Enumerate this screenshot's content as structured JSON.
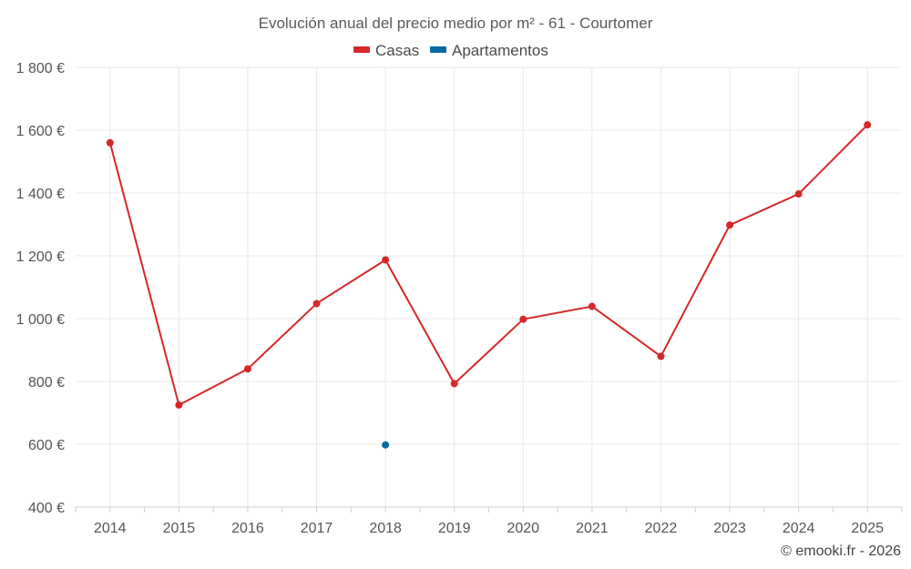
{
  "chart_data": {
    "type": "line",
    "title": "Evolución anual del precio medio por m² - 61 - Courtomer",
    "categories": [
      "2014",
      "2015",
      "2016",
      "2017",
      "2018",
      "2019",
      "2020",
      "2021",
      "2022",
      "2023",
      "2024",
      "2025"
    ],
    "series": [
      {
        "name": "Casas",
        "color": "#d62728",
        "values": [
          1560,
          725,
          840,
          1048,
          1187,
          793,
          998,
          1039,
          880,
          1298,
          1397,
          1617
        ]
      },
      {
        "name": "Apartamentos",
        "color": "#07689f",
        "values": [
          null,
          null,
          null,
          null,
          598,
          null,
          null,
          null,
          null,
          null,
          null,
          null
        ]
      }
    ],
    "yticks": [
      400,
      600,
      800,
      1000,
      1200,
      1400,
      1600,
      1800
    ],
    "ytick_labels": [
      "400 €",
      "600 €",
      "800 €",
      "1 000 €",
      "1 200 €",
      "1 400 €",
      "1 600 €",
      "1 800 €"
    ],
    "ylim": [
      400,
      1800
    ],
    "grid": true,
    "legend_position": "top-center",
    "credit": "© emooki.fr - 2026"
  }
}
